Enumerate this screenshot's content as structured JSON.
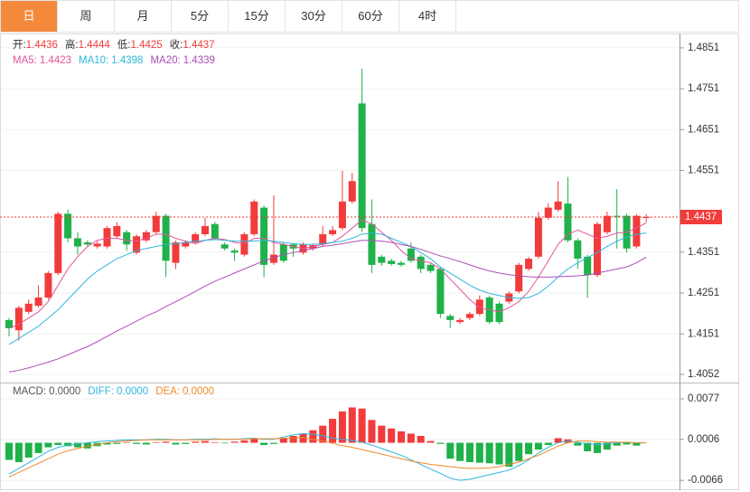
{
  "tabs": [
    "日",
    "周",
    "月",
    "5分",
    "15分",
    "30分",
    "60分",
    "4时"
  ],
  "active_tab": 0,
  "chart_data": [
    {
      "type": "candlestick",
      "ylim": [
        1.4032,
        1.4884
      ],
      "yticks": [
        1.4851,
        1.4751,
        1.4651,
        1.4551,
        1.4351,
        1.4251,
        1.4151,
        1.4052
      ],
      "grid": true,
      "up_color": "#f23b3b",
      "down_color": "#1fb14a",
      "ohlc_labels": [
        "开:",
        "高:",
        "低:",
        "收:"
      ],
      "last_price": 1.4437,
      "open": [
        1.4185,
        1.416,
        1.4205,
        1.422,
        1.424,
        1.43,
        1.4445,
        1.4385,
        1.4375,
        1.4365,
        1.4365,
        1.439,
        1.44,
        1.435,
        1.438,
        1.44,
        1.444,
        1.4325,
        1.4365,
        1.4375,
        1.4395,
        1.442,
        1.437,
        1.4355,
        1.4345,
        1.4395,
        1.446,
        1.4325,
        1.437,
        1.437,
        1.435,
        1.436,
        1.437,
        1.4395,
        1.441,
        1.4475,
        1.4715,
        1.442,
        1.434,
        1.433,
        1.4325,
        1.436,
        1.434,
        1.432,
        1.431,
        1.4195,
        1.418,
        1.419,
        1.42,
        1.424,
        1.4225,
        1.423,
        1.4255,
        1.431,
        1.434,
        1.4435,
        1.4455,
        1.447,
        1.438,
        1.434,
        1.4295,
        1.44,
        1.444,
        1.444,
        1.4365,
        1.4436
      ],
      "high": [
        1.419,
        1.422,
        1.4235,
        1.427,
        1.4305,
        1.445,
        1.4455,
        1.44,
        1.438,
        1.4378,
        1.4415,
        1.4425,
        1.4405,
        1.4395,
        1.4405,
        1.445,
        1.4445,
        1.438,
        1.438,
        1.44,
        1.4435,
        1.4425,
        1.4375,
        1.436,
        1.44,
        1.448,
        1.4465,
        1.449,
        1.4375,
        1.4372,
        1.4375,
        1.4372,
        1.4415,
        1.4415,
        1.455,
        1.4545,
        1.48,
        1.448,
        1.4345,
        1.4335,
        1.433,
        1.4375,
        1.4345,
        1.4325,
        1.4315,
        1.42,
        1.419,
        1.4205,
        1.4245,
        1.4245,
        1.423,
        1.4255,
        1.4325,
        1.434,
        1.445,
        1.447,
        1.4525,
        1.4535,
        1.4385,
        1.4345,
        1.4425,
        1.445,
        1.4505,
        1.4445,
        1.4444,
        1.4444
      ],
      "low": [
        1.4145,
        1.4135,
        1.42,
        1.4215,
        1.4235,
        1.4295,
        1.4375,
        1.4345,
        1.4365,
        1.436,
        1.436,
        1.4385,
        1.4355,
        1.4345,
        1.4375,
        1.4395,
        1.429,
        1.431,
        1.436,
        1.437,
        1.439,
        1.438,
        1.4355,
        1.433,
        1.434,
        1.439,
        1.429,
        1.432,
        1.4325,
        1.434,
        1.4345,
        1.4355,
        1.4365,
        1.439,
        1.4405,
        1.447,
        1.44,
        1.43,
        1.4318,
        1.4318,
        1.4315,
        1.4325,
        1.43,
        1.43,
        1.419,
        1.4165,
        1.4175,
        1.4185,
        1.4195,
        1.4175,
        1.4175,
        1.4225,
        1.425,
        1.4305,
        1.4335,
        1.443,
        1.445,
        1.4375,
        1.431,
        1.424,
        1.429,
        1.4395,
        1.436,
        1.435,
        1.436,
        1.4425
      ],
      "close": [
        1.4165,
        1.4215,
        1.4225,
        1.424,
        1.43,
        1.4445,
        1.4385,
        1.4365,
        1.437,
        1.4372,
        1.441,
        1.4415,
        1.437,
        1.439,
        1.44,
        1.444,
        1.433,
        1.4375,
        1.4375,
        1.4395,
        1.4415,
        1.4385,
        1.436,
        1.435,
        1.4395,
        1.4475,
        1.432,
        1.4345,
        1.433,
        1.436,
        1.437,
        1.4368,
        1.4395,
        1.4405,
        1.4475,
        1.4525,
        1.441,
        1.432,
        1.4325,
        1.4322,
        1.432,
        1.433,
        1.431,
        1.4305,
        1.42,
        1.4185,
        1.4185,
        1.42,
        1.4235,
        1.418,
        1.418,
        1.425,
        1.432,
        1.4335,
        1.4435,
        1.446,
        1.4475,
        1.438,
        1.4335,
        1.4295,
        1.442,
        1.444,
        1.4438,
        1.436,
        1.444,
        1.4437
      ],
      "series": [
        {
          "name": "MA5:",
          "color": "#e2559a",
          "values": [
            1.4165,
            1.4175,
            1.419,
            1.4205,
            1.423,
            1.427,
            1.431,
            1.434,
            1.4365,
            1.438,
            1.4385,
            1.4385,
            1.438,
            1.4378,
            1.4385,
            1.4395,
            1.4395,
            1.4385,
            1.4378,
            1.4372,
            1.438,
            1.4385,
            1.4382,
            1.4375,
            1.4372,
            1.4385,
            1.4385,
            1.4375,
            1.437,
            1.4365,
            1.436,
            1.4365,
            1.437,
            1.4375,
            1.439,
            1.441,
            1.443,
            1.442,
            1.44,
            1.438,
            1.4355,
            1.4335,
            1.433,
            1.4325,
            1.431,
            1.4285,
            1.426,
            1.4235,
            1.4215,
            1.421,
            1.4205,
            1.4215,
            1.423,
            1.4255,
            1.429,
            1.433,
            1.437,
            1.4395,
            1.4405,
            1.4395,
            1.4385,
            1.439,
            1.4398,
            1.44,
            1.441,
            1.4423
          ]
        },
        {
          "name": "MA10:",
          "color": "#2fb6dd",
          "values": [
            1.4125,
            1.414,
            1.4155,
            1.417,
            1.419,
            1.421,
            1.4235,
            1.426,
            1.4285,
            1.4305,
            1.432,
            1.4335,
            1.4345,
            1.4355,
            1.436,
            1.4365,
            1.437,
            1.4372,
            1.4375,
            1.4378,
            1.438,
            1.4382,
            1.438,
            1.4378,
            1.4378,
            1.4378,
            1.438,
            1.4378,
            1.4375,
            1.4372,
            1.437,
            1.437,
            1.4372,
            1.4375,
            1.4378,
            1.4385,
            1.4395,
            1.4398,
            1.4395,
            1.4385,
            1.4375,
            1.4365,
            1.435,
            1.4335,
            1.4315,
            1.43,
            1.4285,
            1.427,
            1.4258,
            1.425,
            1.4245,
            1.424,
            1.4238,
            1.424,
            1.425,
            1.4268,
            1.429,
            1.431,
            1.4325,
            1.4338,
            1.435,
            1.4365,
            1.4378,
            1.4388,
            1.4395,
            1.4398
          ]
        },
        {
          "name": "MA20:",
          "color": "#ad4fb5",
          "values": [
            1.4058,
            1.4062,
            1.4068,
            1.4075,
            1.4082,
            1.409,
            1.41,
            1.411,
            1.412,
            1.4132,
            1.4145,
            1.4158,
            1.417,
            1.4182,
            1.4195,
            1.4205,
            1.4218,
            1.423,
            1.4242,
            1.4255,
            1.4268,
            1.428,
            1.429,
            1.43,
            1.431,
            1.432,
            1.433,
            1.4338,
            1.4345,
            1.435,
            1.4355,
            1.436,
            1.4365,
            1.4368,
            1.4372,
            1.4376,
            1.438,
            1.438,
            1.4378,
            1.4375,
            1.437,
            1.4365,
            1.4358,
            1.435,
            1.4342,
            1.4335,
            1.4328,
            1.432,
            1.4312,
            1.4305,
            1.43,
            1.4296,
            1.4293,
            1.4291,
            1.429,
            1.429,
            1.4291,
            1.4292,
            1.4293,
            1.4295,
            1.43,
            1.4305,
            1.431,
            1.4315,
            1.4325,
            1.4339
          ]
        }
      ]
    },
    {
      "type": "macd",
      "ylim": [
        -0.008,
        0.0104
      ],
      "yticks": [
        0.0077,
        0.0006,
        -0.0066
      ],
      "grid": true,
      "series": [
        {
          "name": "MACD:",
          "last_label": "0.0000",
          "kind": "bar",
          "color": "#555555",
          "up_color": "#f23b3b",
          "down_color": "#1fb14a",
          "values": [
            -0.003,
            -0.0034,
            -0.0026,
            -0.0018,
            -0.0008,
            -0.0004,
            -0.0006,
            -0.0008,
            -0.001,
            -0.0006,
            -0.0003,
            -0.0002,
            0.0001,
            -0.0002,
            -0.0003,
            0.0001,
            0.0002,
            -0.0003,
            -0.0002,
            0.0002,
            0.0003,
            0.0001,
            -0.0001,
            0.0002,
            0.0004,
            0.0008,
            -0.0004,
            -0.0002,
            0.0008,
            0.0012,
            0.0016,
            0.0022,
            0.003,
            0.0042,
            0.0055,
            0.0062,
            0.006,
            0.004,
            0.003,
            0.0025,
            0.002,
            0.0016,
            0.0012,
            0.0003,
            -0.0002,
            -0.0028,
            -0.0032,
            -0.0034,
            -0.0035,
            -0.0036,
            -0.0038,
            -0.0042,
            -0.0032,
            -0.002,
            -0.0012,
            -0.0004,
            0.0008,
            0.0006,
            -0.0005,
            -0.0015,
            -0.0018,
            -0.0012,
            -0.0005,
            -0.0003,
            -0.0005,
            0.0
          ]
        },
        {
          "name": "DIFF:",
          "last_label": "0.0000",
          "kind": "line",
          "color": "#2fb6dd",
          "values": [
            -0.0055,
            -0.0045,
            -0.0035,
            -0.0025,
            -0.0015,
            -0.0008,
            -0.0004,
            -0.0002,
            0.0,
            0.0002,
            0.0003,
            0.0004,
            0.0005,
            0.0005,
            0.0005,
            0.0006,
            0.0006,
            0.0005,
            0.0005,
            0.0006,
            0.0006,
            0.0007,
            0.0006,
            0.0006,
            0.0007,
            0.0008,
            0.0006,
            0.0006,
            0.001,
            0.0014,
            0.0016,
            0.0015,
            0.0012,
            0.0008,
            0.0006,
            0.0004,
            0.0001,
            -0.0004,
            -0.001,
            -0.0016,
            -0.0022,
            -0.003,
            -0.0038,
            -0.0046,
            -0.0054,
            -0.0062,
            -0.0066,
            -0.0064,
            -0.006,
            -0.0056,
            -0.0052,
            -0.0048,
            -0.004,
            -0.003,
            -0.0018,
            -0.0008,
            0.0,
            0.0003,
            0.0001,
            -0.0002,
            -0.0003,
            -0.0001,
            0.0,
            0.0001,
            0.0,
            0.0
          ]
        },
        {
          "name": "DEA:",
          "last_label": "0.0000",
          "kind": "line",
          "color": "#f08a2a",
          "values": [
            -0.006,
            -0.0052,
            -0.0044,
            -0.0036,
            -0.0028,
            -0.002,
            -0.0014,
            -0.001,
            -0.0006,
            -0.0003,
            0.0,
            0.0002,
            0.0003,
            0.0004,
            0.0005,
            0.0005,
            0.0005,
            0.0005,
            0.0005,
            0.0005,
            0.0005,
            0.0006,
            0.0006,
            0.0006,
            0.0006,
            0.0007,
            0.0007,
            0.0007,
            0.0008,
            0.0008,
            0.0009,
            0.0006,
            0.0003,
            -0.0001,
            -0.0005,
            -0.0008,
            -0.0012,
            -0.0016,
            -0.002,
            -0.0024,
            -0.0028,
            -0.0032,
            -0.0035,
            -0.0038,
            -0.004,
            -0.0042,
            -0.0044,
            -0.0045,
            -0.0045,
            -0.0044,
            -0.0042,
            -0.0038,
            -0.0034,
            -0.0028,
            -0.0022,
            -0.0014,
            -0.0006,
            0.0,
            0.0003,
            0.0003,
            0.0002,
            0.0001,
            0.0001,
            0.0001,
            0.0,
            0.0
          ]
        }
      ]
    }
  ]
}
